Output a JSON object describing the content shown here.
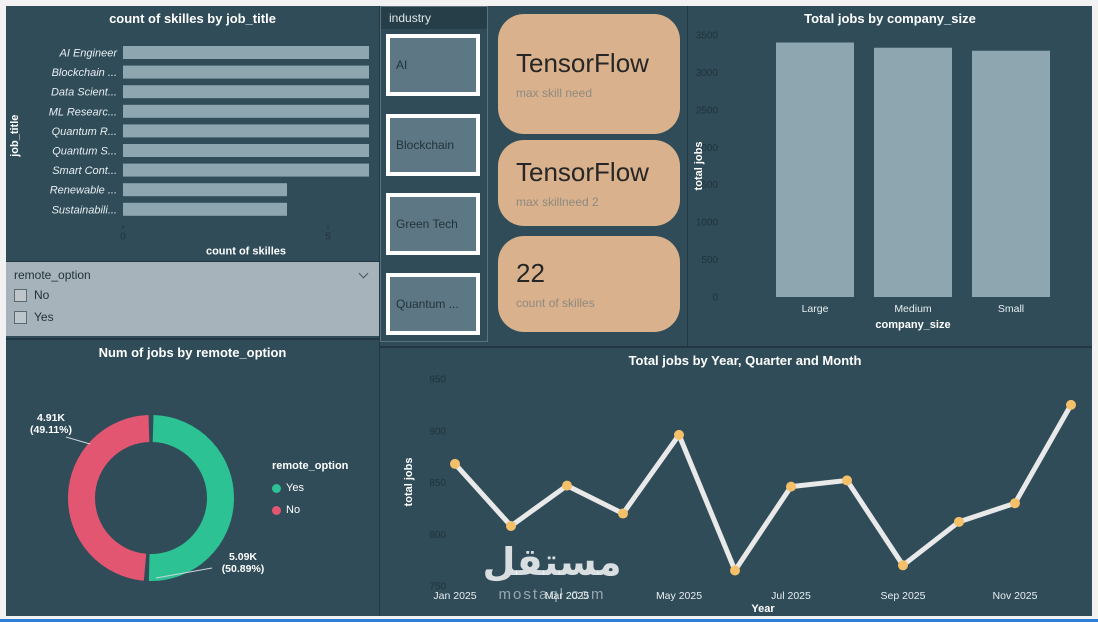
{
  "colors": {
    "background": "#2f4c58",
    "frame": "#f2f2f2",
    "bar": "#8da6b0",
    "title_text": "#ffffff",
    "tick_text": "#22333b",
    "light_text": "#e8eef1",
    "card_bg": "#d9b18c",
    "card_text": "#262626",
    "card_subtext": "#8f8a80",
    "donut_yes": "#2cc294",
    "donut_no": "#e25672",
    "line": "#e9e9e9",
    "marker": "#f4c06a",
    "slicer_bg": "#a7b3ba",
    "slicer_text": "#1f3038",
    "tile_bg": "#5d7884",
    "accent_bottom": "#2d7fd6"
  },
  "slicer_remote": {
    "title": "remote_option",
    "options": [
      "No",
      "Yes"
    ]
  },
  "industry_slicer": {
    "title": "industry",
    "tiles": [
      "AI",
      "Blockchain",
      "Green Tech",
      "Quantum ..."
    ]
  },
  "cards": [
    {
      "value": "TensorFlow",
      "label": "max skill need"
    },
    {
      "value": "TensorFlow",
      "label": "max skillneed 2"
    },
    {
      "value": "22",
      "label": "count of skilles"
    }
  ],
  "watermark": {
    "name": "مستقل",
    "domain": "mostaql.com"
  },
  "chart_data": [
    {
      "type": "bar",
      "orientation": "horizontal",
      "title": "count of skilles by job_title",
      "categories": [
        "AI Engineer",
        "Blockchain ...",
        "Data Scient...",
        "ML Researc...",
        "Quantum R...",
        "Quantum S...",
        "Smart Cont...",
        "Renewable ...",
        "Sustainabili..."
      ],
      "values": [
        6,
        6,
        6,
        6,
        6,
        6,
        6,
        4,
        4
      ],
      "xlabel": "count of skilles",
      "ylabel": "job_title",
      "xticks": [
        0,
        5
      ],
      "xlim": [
        0,
        6.3
      ],
      "grid": false
    },
    {
      "type": "pie",
      "donut": true,
      "title": "Num of jobs by remote_option",
      "legend_title": "remote_option",
      "legend_position": "right",
      "labels": [
        "Yes",
        "No"
      ],
      "values_display": [
        "5.09K",
        "4.91K"
      ],
      "pct_display": [
        "(50.89%)",
        "(49.11%)"
      ],
      "fractions": [
        0.5089,
        0.4911
      ],
      "colors": [
        "#2cc294",
        "#e25672"
      ]
    },
    {
      "type": "bar",
      "title": "Total jobs by company_size",
      "categories": [
        "Large",
        "Medium",
        "Small"
      ],
      "values": [
        3400,
        3330,
        3290
      ],
      "xlabel": "company_size",
      "ylabel": "total jobs",
      "ylim": [
        0,
        3500
      ],
      "yticks": [
        0,
        500,
        1000,
        1500,
        2000,
        2500,
        3000,
        3500
      ],
      "grid": false
    },
    {
      "type": "line",
      "title": "Total jobs by Year, Quarter and Month",
      "x": [
        "Jan 2025",
        "Feb 2025",
        "Mar 2025",
        "Apr 2025",
        "May 2025",
        "Jun 2025",
        "Jul 2025",
        "Aug 2025",
        "Sep 2025",
        "Oct 2025",
        "Nov 2025",
        "Dec 2025"
      ],
      "values": [
        868,
        808,
        847,
        820,
        896,
        765,
        846,
        852,
        770,
        812,
        830,
        925
      ],
      "shown_x_labels": [
        "Jan 2025",
        "Mar 2025",
        "May 2025",
        "Jul 2025",
        "Sep 2025",
        "Nov 2025"
      ],
      "xlabel": "Year",
      "ylabel": "total jobs",
      "ylim": [
        750,
        950
      ],
      "yticks": [
        750,
        800,
        850,
        900,
        950
      ],
      "grid": false
    }
  ]
}
